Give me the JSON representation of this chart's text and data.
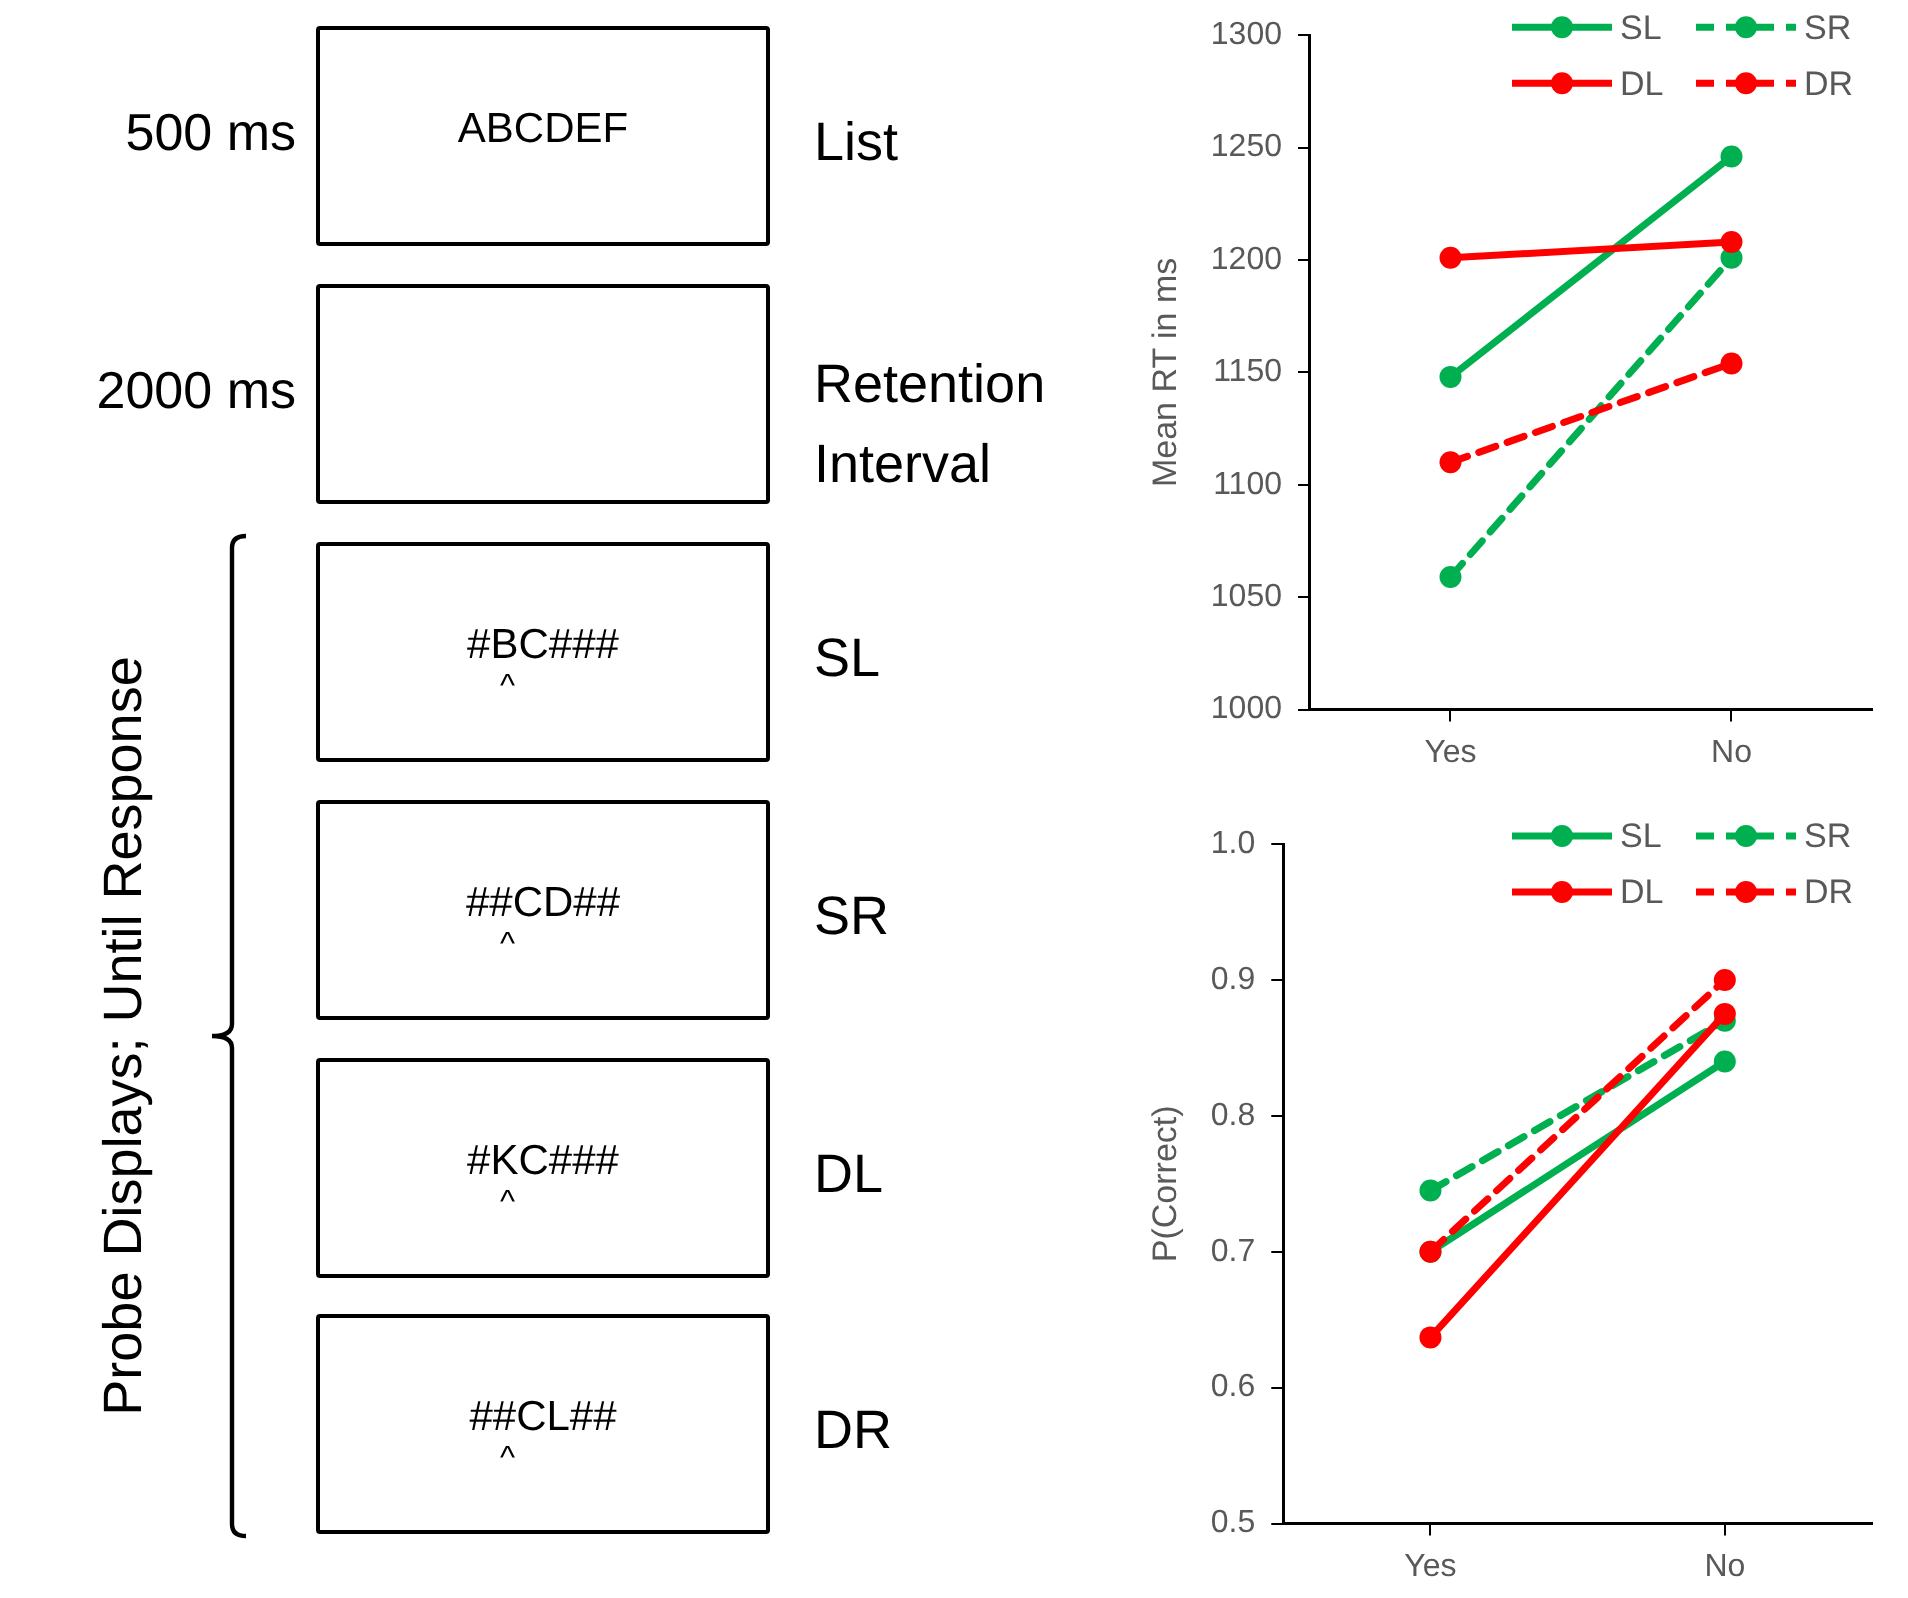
{
  "chart_data": [
    {
      "type": "other",
      "annotations": [
        "500 ms",
        "ABCDEF",
        "List",
        "2000 ms",
        "Retention Interval",
        "#BC###",
        "^",
        "SL",
        "##CD##",
        "^",
        "SR",
        "#KC###",
        "^",
        "DL",
        "##CL##",
        "^",
        "DR",
        "Probe Displays; Until Response"
      ]
    },
    {
      "type": "line",
      "ylabel": "Mean RT in ms",
      "categories": [
        "Yes",
        "No"
      ],
      "ylim": [
        1000,
        1300
      ],
      "yticks": [
        1000,
        1050,
        1100,
        1150,
        1200,
        1250,
        1300
      ],
      "grid": false,
      "legend": "top right",
      "marker": "circle",
      "series": [
        {
          "name": "SL",
          "color": "#00b050",
          "line_style": "solid",
          "values": [
            1148,
            1246
          ]
        },
        {
          "name": "SR",
          "color": "#00b050",
          "line_style": "dashed",
          "values": [
            1059,
            1201
          ]
        },
        {
          "name": "DL",
          "color": "#ff0000",
          "line_style": "solid",
          "values": [
            1201,
            1208
          ]
        },
        {
          "name": "DR",
          "color": "#ff0000",
          "line_style": "dashed",
          "values": [
            1110,
            1154
          ]
        }
      ]
    },
    {
      "type": "line",
      "ylabel": "P(Correct)",
      "categories": [
        "Yes",
        "No"
      ],
      "ylim": [
        0.5,
        1
      ],
      "yticks": [
        0.5,
        0.6,
        0.7,
        0.8,
        0.9,
        {
          "value": 1,
          "label": "1.0"
        }
      ],
      "grid": false,
      "legend": "top right",
      "marker": "circle",
      "series": [
        {
          "name": "SL",
          "color": "#00b050",
          "line_style": "solid",
          "values": [
            0.7,
            0.84
          ]
        },
        {
          "name": "SR",
          "color": "#00b050",
          "line_style": "dashed",
          "values": [
            0.745,
            0.87
          ]
        },
        {
          "name": "DL",
          "color": "#ff0000",
          "line_style": "solid",
          "values": [
            0.637,
            0.875
          ]
        },
        {
          "name": "DR",
          "color": "#ff0000",
          "line_style": "dashed",
          "values": [
            0.7,
            0.9
          ]
        }
      ]
    }
  ]
}
